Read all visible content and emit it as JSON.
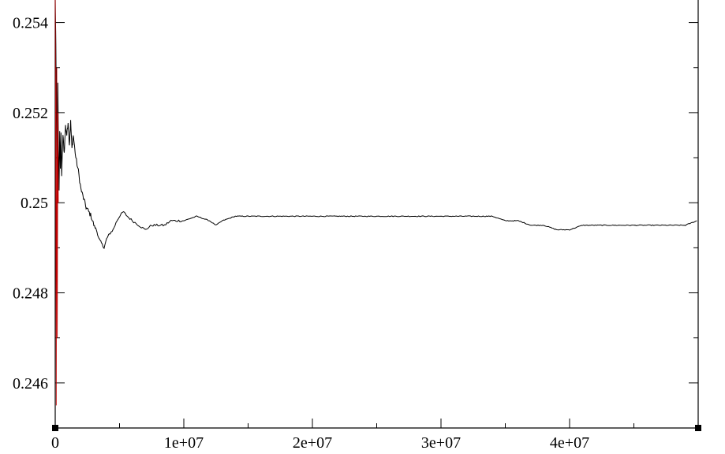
{
  "chart_data": {
    "type": "line",
    "title": "",
    "xlabel": "",
    "ylabel": "",
    "xlim": [
      0,
      50000000
    ],
    "ylim": [
      0.245,
      0.2545
    ],
    "x_ticks": [
      {
        "value": 0,
        "label": "0"
      },
      {
        "value": 10000000,
        "label": "1e+07"
      },
      {
        "value": 20000000,
        "label": "2e+07"
      },
      {
        "value": 30000000,
        "label": "3e+07"
      },
      {
        "value": 40000000,
        "label": "4e+07"
      }
    ],
    "x_minor_ticks": [
      5000000,
      15000000,
      25000000,
      35000000,
      45000000
    ],
    "y_ticks": [
      {
        "value": 0.246,
        "label": "0.246"
      },
      {
        "value": 0.248,
        "label": "0.248"
      },
      {
        "value": 0.25,
        "label": "0.25"
      },
      {
        "value": 0.252,
        "label": "0.252"
      },
      {
        "value": 0.254,
        "label": "0.254"
      }
    ],
    "y_minor_ticks": [
      0.245,
      0.247,
      0.249,
      0.251,
      0.253
    ],
    "grid": false,
    "series": [
      {
        "color": "#000000",
        "x": [
          0,
          50000,
          100000,
          150000,
          200000,
          250000,
          300000,
          350000,
          400000,
          450000,
          500000,
          600000,
          700000,
          800000,
          900000,
          1000000,
          1100000,
          1200000,
          1300000,
          1400000,
          1600000,
          1800000,
          2000000,
          2200000,
          2400000,
          2600000,
          2800000,
          3000000,
          3200000,
          3400000,
          3600000,
          3800000,
          4000000,
          4200000,
          4500000,
          4800000,
          5000000,
          5300000,
          5600000,
          6000000,
          6500000,
          7000000,
          7500000,
          8000000,
          8500000,
          9000000,
          9500000,
          10000000,
          11000000,
          12000000,
          12500000,
          13000000,
          14000000,
          15000000,
          16000000,
          17000000,
          18000000,
          19000000,
          20000000,
          21000000,
          22000000,
          23000000,
          24000000,
          25000000,
          26000000,
          27000000,
          28000000,
          29000000,
          30000000,
          31000000,
          32000000,
          33000000,
          34000000,
          35000000,
          36000000,
          37000000,
          38000000,
          39000000,
          40000000,
          41000000,
          42000000,
          43000000,
          44000000,
          45000000,
          46000000,
          47000000,
          48000000,
          49000000,
          49900000
        ],
        "values": [
          0.2545,
          0.2535,
          0.2515,
          0.2486,
          0.2527,
          0.2512,
          0.2503,
          0.2516,
          0.2508,
          0.2515,
          0.2506,
          0.2515,
          0.2511,
          0.2517,
          0.2515,
          0.2518,
          0.2513,
          0.2518,
          0.2512,
          0.2515,
          0.251,
          0.2507,
          0.2503,
          0.2501,
          0.2499,
          0.2498,
          0.2497,
          0.2495,
          0.2494,
          0.2492,
          0.2491,
          0.249,
          0.2492,
          0.2493,
          0.2494,
          0.2496,
          0.2497,
          0.2498,
          0.2497,
          0.2496,
          0.2495,
          0.2494,
          0.2495,
          0.2495,
          0.2495,
          0.2496,
          0.2496,
          0.2496,
          0.2497,
          0.2496,
          0.2495,
          0.2496,
          0.2497,
          0.2497,
          0.2497,
          0.2497,
          0.2497,
          0.2497,
          0.2497,
          0.2497,
          0.2497,
          0.2497,
          0.2497,
          0.2497,
          0.2497,
          0.2497,
          0.2497,
          0.2497,
          0.2497,
          0.2497,
          0.2497,
          0.2497,
          0.2497,
          0.2496,
          0.2496,
          0.2495,
          0.2495,
          0.2494,
          0.2494,
          0.2495,
          0.2495,
          0.2495,
          0.2495,
          0.2495,
          0.2495,
          0.2495,
          0.2495,
          0.2495,
          0.2496
        ]
      },
      {
        "color": "#c00000",
        "x": [
          0,
          40000,
          80000,
          120000,
          160000,
          200000,
          240000
        ],
        "values": [
          0.2545,
          0.251,
          0.2455,
          0.253,
          0.247,
          0.252,
          0.25
        ]
      }
    ]
  }
}
